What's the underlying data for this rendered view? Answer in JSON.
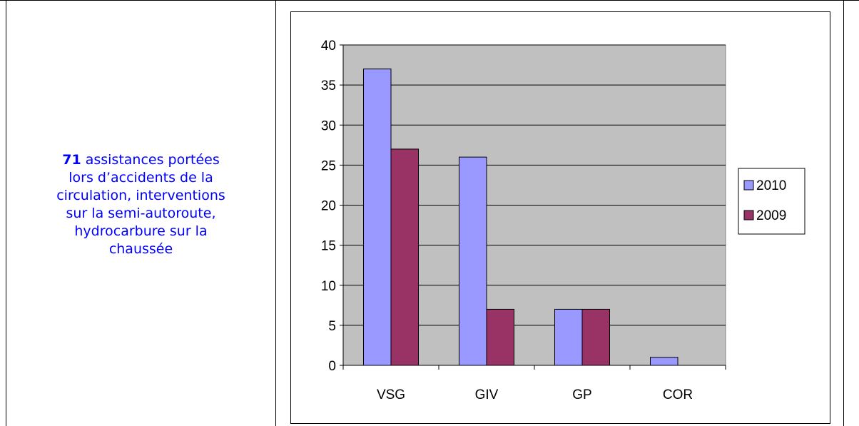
{
  "description": {
    "highlight": "71",
    "line1": " assistances portées",
    "line2": "lors d’accidents de la",
    "line3": "circulation, interventions",
    "line4": "sur la semi-autoroute,",
    "line5": "hydrocarbure sur la",
    "line6": "chaussée"
  },
  "chart_data": {
    "type": "bar",
    "categories": [
      "VSG",
      "GIV",
      "GP",
      "COR"
    ],
    "series": [
      {
        "name": "2010",
        "values": [
          37,
          26,
          7,
          1
        ],
        "color": "#9999ff"
      },
      {
        "name": "2009",
        "values": [
          27,
          7,
          7,
          0
        ],
        "color": "#993366"
      }
    ],
    "ylim": [
      0,
      40
    ],
    "yticks": [
      "0",
      "5",
      "10",
      "15",
      "20",
      "25",
      "30",
      "35",
      "40"
    ],
    "grid": true,
    "plot_background": "#c0c0c0",
    "legend_position": "right"
  }
}
